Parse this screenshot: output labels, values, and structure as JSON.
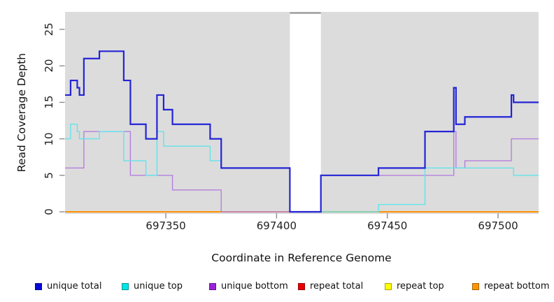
{
  "chart_data": {
    "type": "line",
    "step": "after",
    "title": "",
    "xlabel": "Coordinate in Reference Genome",
    "ylabel": "Read Coverage Depth",
    "xlim": [
      697304.5,
      697518.3
    ],
    "ylim": [
      0,
      27.4
    ],
    "x_end": 697519,
    "grid": false,
    "legend_position": "bottom",
    "plot_bg": "#dcdcdc",
    "tick_color": "#8e8e8e",
    "x_ticks": [
      {
        "value": 697350,
        "label": "697350"
      },
      {
        "value": 697400,
        "label": "697400"
      },
      {
        "value": 697450,
        "label": "697450"
      },
      {
        "value": 697500,
        "label": "697500"
      }
    ],
    "y_ticks": [
      {
        "value": 0,
        "label": "0"
      },
      {
        "value": 5,
        "label": "5"
      },
      {
        "value": 10,
        "label": "10"
      },
      {
        "value": 15,
        "label": "15"
      },
      {
        "value": 20,
        "label": "20"
      },
      {
        "value": 25,
        "label": "25"
      }
    ],
    "masked_region": {
      "x0": 697406,
      "x1": 697420,
      "fill": "#ffffff",
      "cap_color": "#9c9c9c"
    },
    "draw_order": [
      "repeat total",
      "repeat top",
      "repeat bottom",
      "unique bottom",
      "unique top",
      "unique total"
    ],
    "series": [
      {
        "name": "unique total",
        "color": "#2424d6",
        "width": 2.2,
        "points": [
          [
            697304,
            16
          ],
          [
            697307,
            18
          ],
          [
            697310,
            17
          ],
          [
            697311,
            16
          ],
          [
            697313,
            21
          ],
          [
            697320,
            22
          ],
          [
            697331,
            18
          ],
          [
            697334,
            12
          ],
          [
            697341,
            10
          ],
          [
            697346,
            16
          ],
          [
            697349,
            14
          ],
          [
            697353,
            12
          ],
          [
            697370,
            10
          ],
          [
            697375,
            6
          ],
          [
            697406,
            0
          ],
          [
            697420,
            5
          ],
          [
            697446,
            6
          ],
          [
            697467,
            11
          ],
          [
            697480,
            17
          ],
          [
            697481,
            12
          ],
          [
            697485,
            13
          ],
          [
            697506,
            16
          ],
          [
            697507,
            15
          ]
        ]
      },
      {
        "name": "unique top",
        "color": "#62e4ea",
        "width": 1.4,
        "points": [
          [
            697304,
            10
          ],
          [
            697307,
            12
          ],
          [
            697310,
            11
          ],
          [
            697311,
            10
          ],
          [
            697320,
            11
          ],
          [
            697331,
            7
          ],
          [
            697341,
            5
          ],
          [
            697346,
            11
          ],
          [
            697349,
            9
          ],
          [
            697370,
            7
          ],
          [
            697375,
            6
          ],
          [
            697406,
            0
          ],
          [
            697446,
            1
          ],
          [
            697467,
            6
          ],
          [
            697507,
            5
          ]
        ]
      },
      {
        "name": "unique bottom",
        "color": "#b57fde",
        "width": 1.4,
        "points": [
          [
            697304,
            6
          ],
          [
            697313,
            11
          ],
          [
            697334,
            5
          ],
          [
            697353,
            3
          ],
          [
            697375,
            0
          ],
          [
            697420,
            5
          ],
          [
            697480,
            11
          ],
          [
            697481,
            6
          ],
          [
            697485,
            7
          ],
          [
            697506,
            10
          ]
        ]
      },
      {
        "name": "repeat total",
        "color": "#e01010",
        "width": 1.2,
        "points": [
          [
            697304,
            0
          ]
        ]
      },
      {
        "name": "repeat top",
        "color": "#ffff00",
        "width": 1.2,
        "points": [
          [
            697304,
            0
          ]
        ]
      },
      {
        "name": "repeat bottom",
        "color": "#ff9100",
        "width": 2.0,
        "points": [
          [
            697304,
            0
          ]
        ]
      }
    ],
    "legend": [
      {
        "label": "unique total",
        "swatch": "#0808dc"
      },
      {
        "label": "unique top",
        "swatch": "#00e5e5"
      },
      {
        "label": "unique bottom",
        "swatch": "#9a22d8"
      },
      {
        "label": "repeat total",
        "swatch": "#e60000"
      },
      {
        "label": "repeat top",
        "swatch": "#ffff00"
      },
      {
        "label": "repeat bottom",
        "swatch": "#ff9800"
      }
    ]
  }
}
